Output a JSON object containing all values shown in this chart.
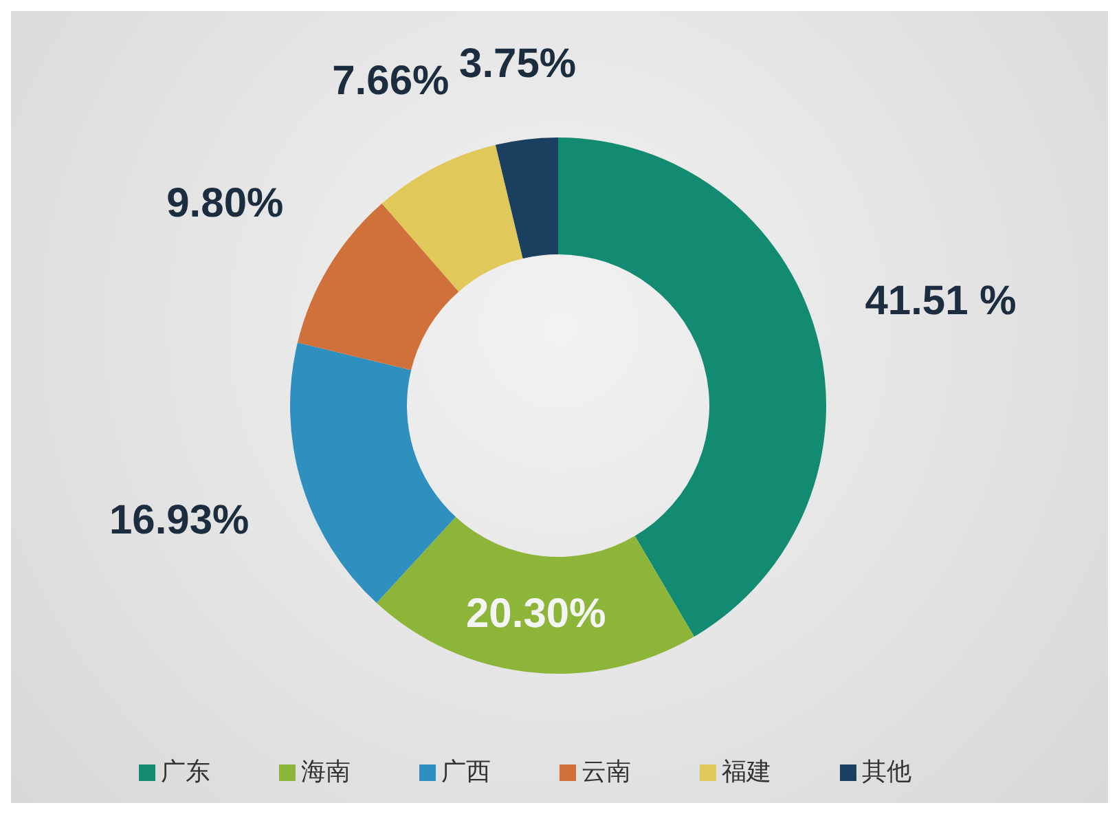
{
  "chart_data": {
    "type": "donut",
    "categories": [
      "广东",
      "海南",
      "广西",
      "云南",
      "福建",
      "其他"
    ],
    "values": [
      41.51,
      20.3,
      16.93,
      9.8,
      7.66,
      3.75
    ],
    "colors": [
      "#138a72",
      "#8db53a",
      "#2f8fbf",
      "#d0703a",
      "#e0c85a",
      "#1a3f5f"
    ],
    "value_labels": [
      "41.51 %",
      "20.30%",
      "16.93%",
      "9.80%",
      "7.66%",
      "3.75%"
    ],
    "legend": "bottom"
  }
}
